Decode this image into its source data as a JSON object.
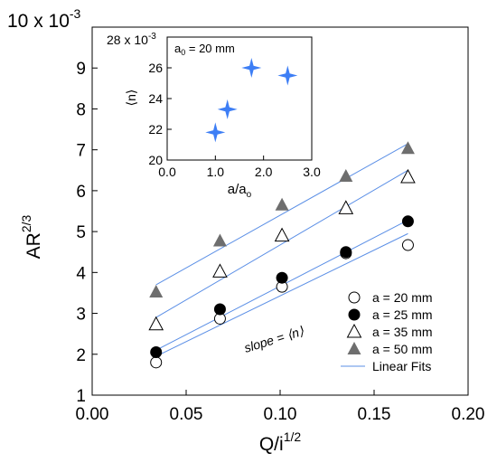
{
  "chart_data": [
    {
      "type": "scatter",
      "title": "",
      "xlabel_base": "Q/i",
      "xlabel_exp": "1/2",
      "ylabel_base": "AR",
      "ylabel_exp": "2/3",
      "y_multiplier_base": "10 x 10",
      "y_multiplier_exp": "-3",
      "xlim": [
        0.0,
        0.2
      ],
      "ylim": [
        1,
        10
      ],
      "x_ticks": [
        0.0,
        0.05,
        0.1,
        0.15,
        0.2
      ],
      "x_tick_labels": [
        "0.00",
        "0.05",
        "0.10",
        "0.15",
        "0.20"
      ],
      "y_ticks": [
        1,
        2,
        3,
        4,
        5,
        6,
        7,
        8,
        9
      ],
      "y_tick_labels": [
        "1",
        "2",
        "3",
        "4",
        "5",
        "6",
        "7",
        "8",
        "9"
      ],
      "grid": false,
      "legend_position": "bottom-right",
      "annotation": "slope = ⟨n⟩",
      "annotation_color": "#4a7fe0",
      "series": [
        {
          "name": "a = 20 mm",
          "marker": "open-circle",
          "color": "#000000",
          "x": [
            0.034,
            0.068,
            0.101,
            0.135,
            0.168
          ],
          "y": [
            1.8,
            2.87,
            3.65,
            4.47,
            4.67
          ]
        },
        {
          "name": "a = 25 mm",
          "marker": "filled-circle",
          "color": "#000000",
          "x": [
            0.034,
            0.068,
            0.101,
            0.135,
            0.168
          ],
          "y": [
            2.05,
            3.1,
            3.87,
            4.5,
            5.25
          ]
        },
        {
          "name": "a = 35 mm",
          "marker": "open-triangle",
          "color": "#000000",
          "x": [
            0.034,
            0.068,
            0.101,
            0.135,
            0.168
          ],
          "y": [
            2.73,
            4.02,
            4.9,
            5.57,
            6.33
          ]
        },
        {
          "name": "a = 50 mm",
          "marker": "filled-triangle",
          "color": "#6e6e6e",
          "x": [
            0.034,
            0.068,
            0.101,
            0.135,
            0.168
          ],
          "y": [
            3.52,
            4.77,
            5.65,
            6.35,
            7.03
          ]
        }
      ],
      "fits": {
        "name": "Linear Fits",
        "color": "#5b8fe6",
        "lines": [
          {
            "x": [
              0.034,
              0.168
            ],
            "y": [
              1.95,
              4.95
            ]
          },
          {
            "x": [
              0.034,
              0.168
            ],
            "y": [
              2.1,
              5.28
            ]
          },
          {
            "x": [
              0.034,
              0.168
            ],
            "y": [
              2.9,
              6.5
            ]
          },
          {
            "x": [
              0.034,
              0.168
            ],
            "y": [
              3.7,
              7.15
            ]
          }
        ]
      }
    },
    {
      "type": "scatter",
      "title": "",
      "annotation": "a0 = 20 mm",
      "annotation_base": "a",
      "annotation_sub": "0",
      "annotation_rest": " = 20 mm",
      "xlabel_base": "a/a",
      "xlabel_sub": "o",
      "ylabel": "⟨n⟩",
      "y_multiplier_base": "28 x 10",
      "y_multiplier_exp": "-3",
      "xlim": [
        0.0,
        3.0
      ],
      "ylim": [
        20,
        28
      ],
      "x_ticks": [
        0.0,
        1.0,
        2.0,
        3.0
      ],
      "x_tick_labels": [
        "0.0",
        "1.0",
        "2.0",
        "3.0"
      ],
      "y_ticks": [
        20,
        22,
        24,
        26
      ],
      "y_tick_labels": [
        "20",
        "22",
        "24",
        "26"
      ],
      "grid": false,
      "series": [
        {
          "marker": "star",
          "color": "#3d7ef5",
          "x": [
            1.0,
            1.25,
            1.75,
            2.5
          ],
          "y": [
            21.8,
            23.3,
            26.0,
            25.5
          ]
        }
      ]
    }
  ]
}
